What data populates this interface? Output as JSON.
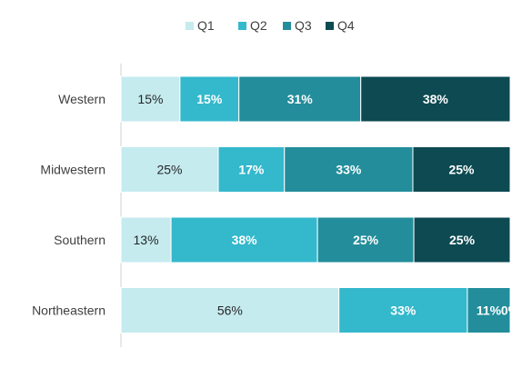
{
  "chart_data": {
    "type": "bar",
    "orientation": "horizontal",
    "stacked": "percent",
    "title": "",
    "xlabel": "",
    "ylabel": "",
    "legend_position": "top",
    "grid": false,
    "categories": [
      "Western",
      "Midwestern",
      "Southern",
      "Northeastern"
    ],
    "series": [
      {
        "name": "Q1",
        "color": "#c5ebef",
        "values": [
          15,
          25,
          13,
          56
        ],
        "labels": [
          "15%",
          "25%",
          "13%",
          "56%"
        ]
      },
      {
        "name": "Q2",
        "color": "#34b8cc",
        "values": [
          15,
          17,
          38,
          33
        ],
        "labels": [
          "15%",
          "17%",
          "38%",
          "33%"
        ]
      },
      {
        "name": "Q3",
        "color": "#238d9b",
        "values": [
          31,
          33,
          25,
          11
        ],
        "labels": [
          "31%",
          "33%",
          "25%",
          "11%"
        ]
      },
      {
        "name": "Q4",
        "color": "#0d4a52",
        "values": [
          38,
          25,
          25,
          0
        ],
        "labels": [
          "38%",
          "25%",
          "25%",
          "0%"
        ]
      }
    ]
  }
}
